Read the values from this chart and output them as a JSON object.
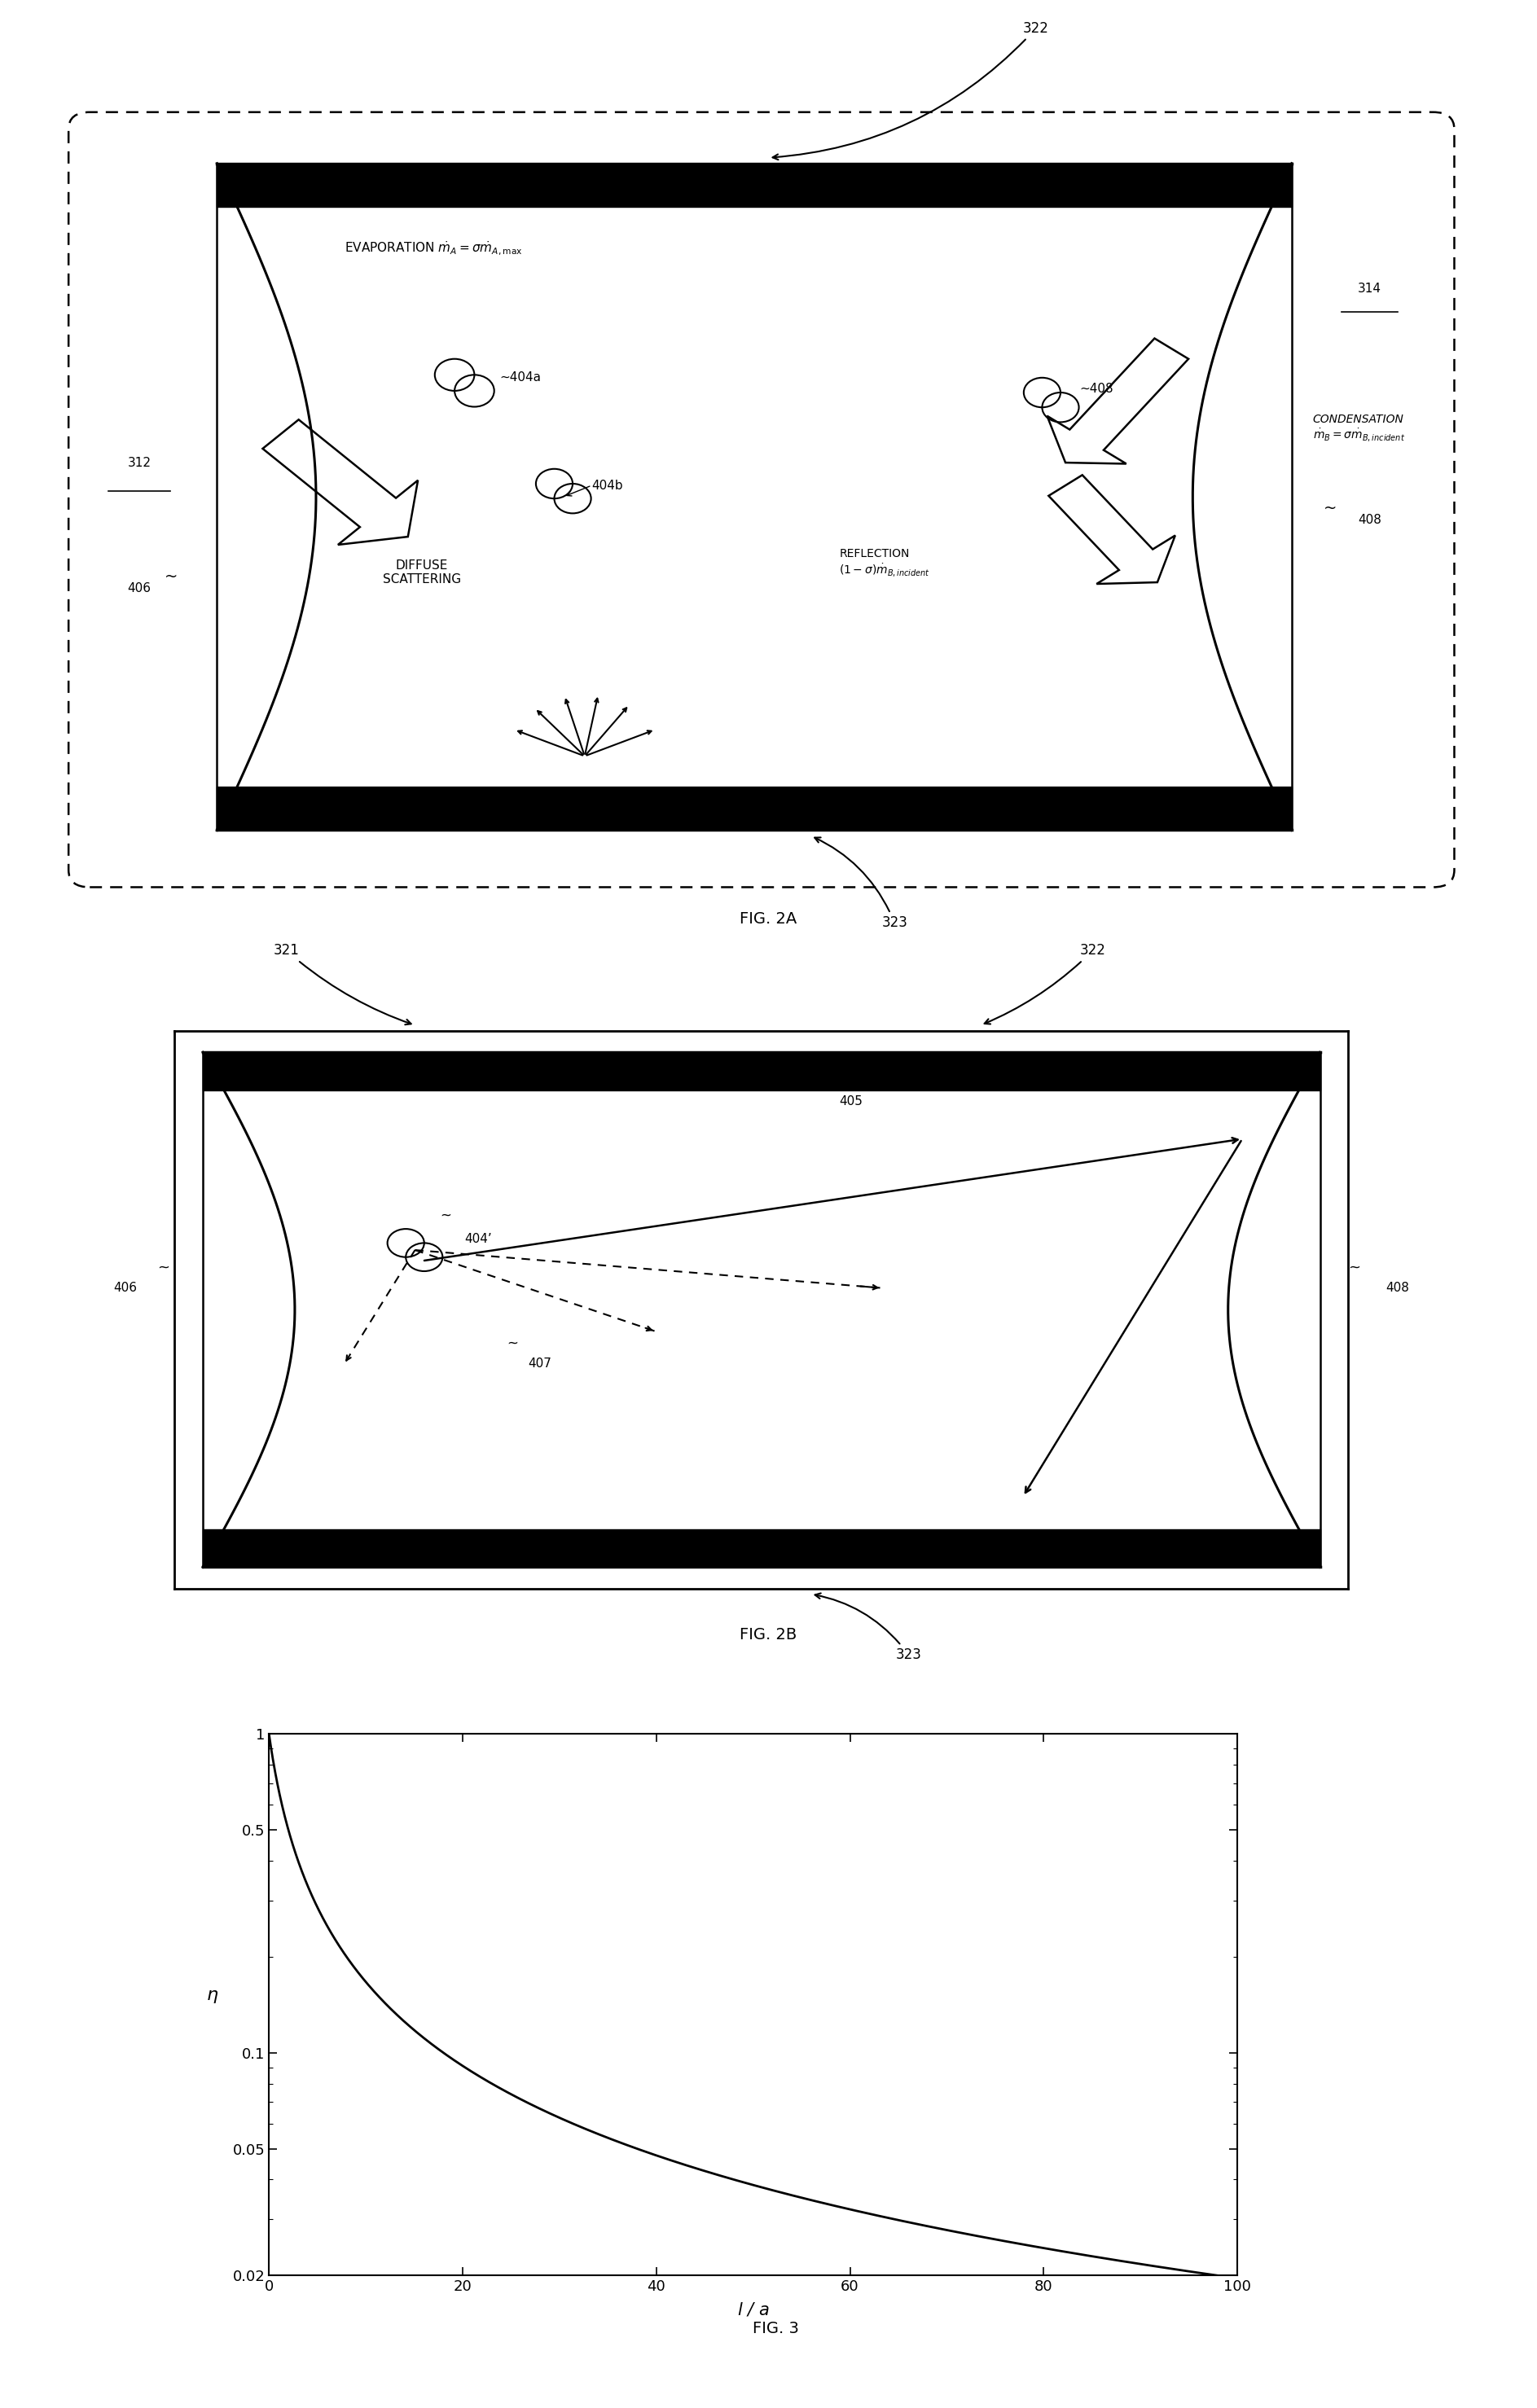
{
  "fig_width": 18.87,
  "fig_height": 29.57,
  "bg_color": "#ffffff",
  "fig2a": {
    "outer_dashed": true,
    "inner_has_hourglass_walls": true,
    "evap_text": "EVAPORATION $\\dot{m}_A = \\sigma\\dot{m}_{A,\\mathrm{max}}$",
    "diffuse_text": "DIFFUSE\nSCATTERING",
    "reflection_text": "REFLECTION\n$(1- \\sigma)\\dot{m}_{B,incident}$",
    "condensation_text": "CONDENSATION\n$\\dot{m}_B = \\sigma\\dot{m}_{B,incident}$",
    "fig_label": "FIG. 2A"
  },
  "fig2b": {
    "fig_label": "FIG. 2B"
  },
  "fig3": {
    "xlabel": "$l$ / $a$",
    "ylabel": "$\\eta$",
    "ytick_vals": [
      0.02,
      0.05,
      0.1,
      0.5,
      1.0
    ],
    "ytick_labels": [
      "0.02",
      "0.05",
      "0.1",
      "0.5",
      "1"
    ],
    "xtick_vals": [
      0,
      20,
      40,
      60,
      80,
      100
    ],
    "xtick_labels": [
      "0",
      "20",
      "40",
      "60",
      "80",
      "100"
    ],
    "xlim": [
      0,
      100
    ],
    "ylim": [
      0.02,
      1.0
    ],
    "fig_label": "FIG. 3"
  }
}
